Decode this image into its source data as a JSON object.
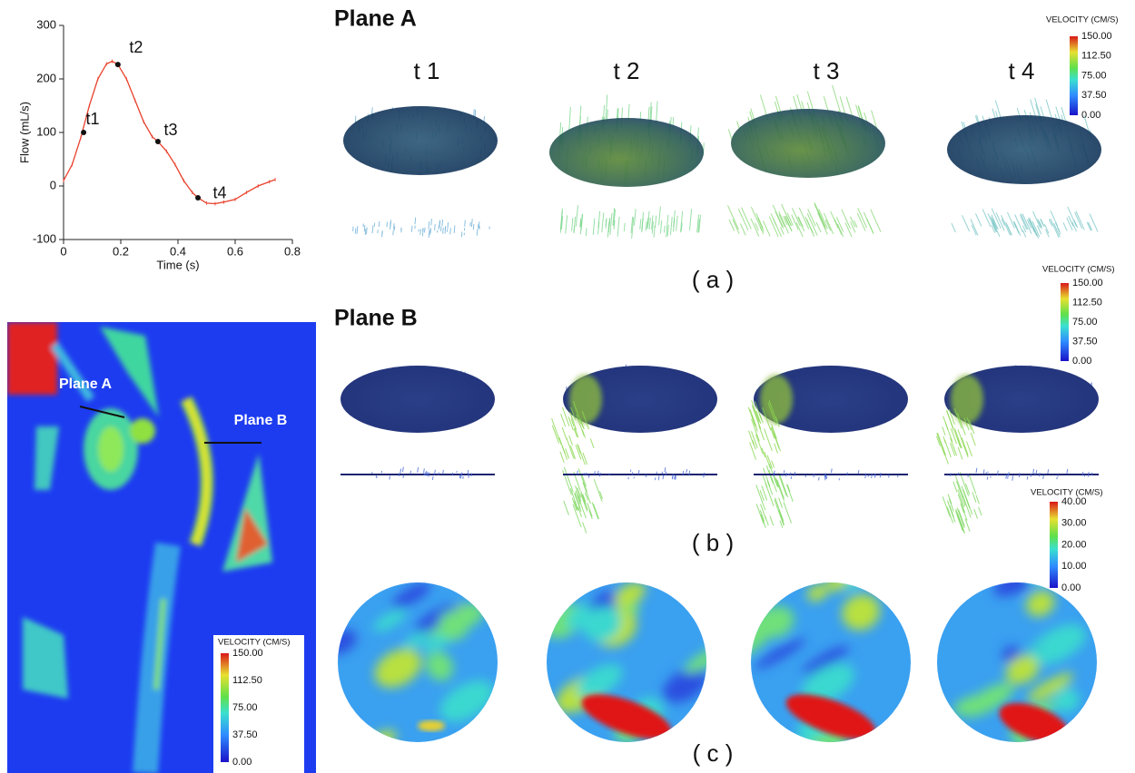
{
  "chart_data": {
    "type": "line",
    "x_label": "Time (s)",
    "y_label": "Flow (mL/s)",
    "xlim": [
      0,
      0.8
    ],
    "xticks": [
      0,
      0.2,
      0.4,
      0.6,
      0.8
    ],
    "ylim": [
      -100,
      300
    ],
    "yticks": [
      -100,
      0,
      100,
      200,
      300
    ],
    "x": [
      0,
      0.03,
      0.06,
      0.09,
      0.12,
      0.15,
      0.17,
      0.19,
      0.22,
      0.25,
      0.28,
      0.31,
      0.33,
      0.36,
      0.39,
      0.42,
      0.45,
      0.47,
      0.5,
      0.53,
      0.56,
      0.6,
      0.64,
      0.68,
      0.72,
      0.74
    ],
    "series": [
      {
        "color": "#e8412c",
        "values": [
          10,
          40,
          90,
          150,
          200,
          228,
          233,
          227,
          200,
          160,
          120,
          92,
          83,
          65,
          40,
          10,
          -12,
          -22,
          -32,
          -33,
          -30,
          -25,
          -12,
          0,
          8,
          12
        ]
      }
    ],
    "points": [
      {
        "label": "t1",
        "x": 0.07,
        "y": 100
      },
      {
        "label": "t2",
        "x": 0.19,
        "y": 227
      },
      {
        "label": "t3",
        "x": 0.33,
        "y": 83
      },
      {
        "label": "t4",
        "x": 0.47,
        "y": -22
      }
    ]
  },
  "figure": {
    "plane_a": {
      "title": "Plane A",
      "times": [
        "t 1",
        "t 2",
        "t 3",
        "t 4"
      ],
      "panel_label": "( a )",
      "colorbar": {
        "title": "VELOCITY (CM/S)",
        "ticks": [
          "150.00",
          "112.50",
          "75.00",
          "37.50",
          "0.00"
        ]
      }
    },
    "plane_b": {
      "title": "Plane B",
      "panel_label": "( b )",
      "colorbar": {
        "title": "VELOCITY (CM/S)",
        "ticks": [
          "150.00",
          "112.50",
          "75.00",
          "37.50",
          "0.00"
        ]
      }
    },
    "panel_c": {
      "panel_label": "( c )",
      "colorbar": {
        "title": "VELOCITY (CM/S)",
        "ticks": [
          "40.00",
          "30.00",
          "20.00",
          "10.00",
          "0.00"
        ]
      }
    },
    "mri": {
      "labels": [
        "Plane A",
        "Plane B"
      ],
      "colorbar": {
        "title": "VELOCITY (CM/S)",
        "ticks": [
          "150.00",
          "112.50",
          "75.00",
          "37.50",
          "0.00"
        ]
      }
    }
  }
}
